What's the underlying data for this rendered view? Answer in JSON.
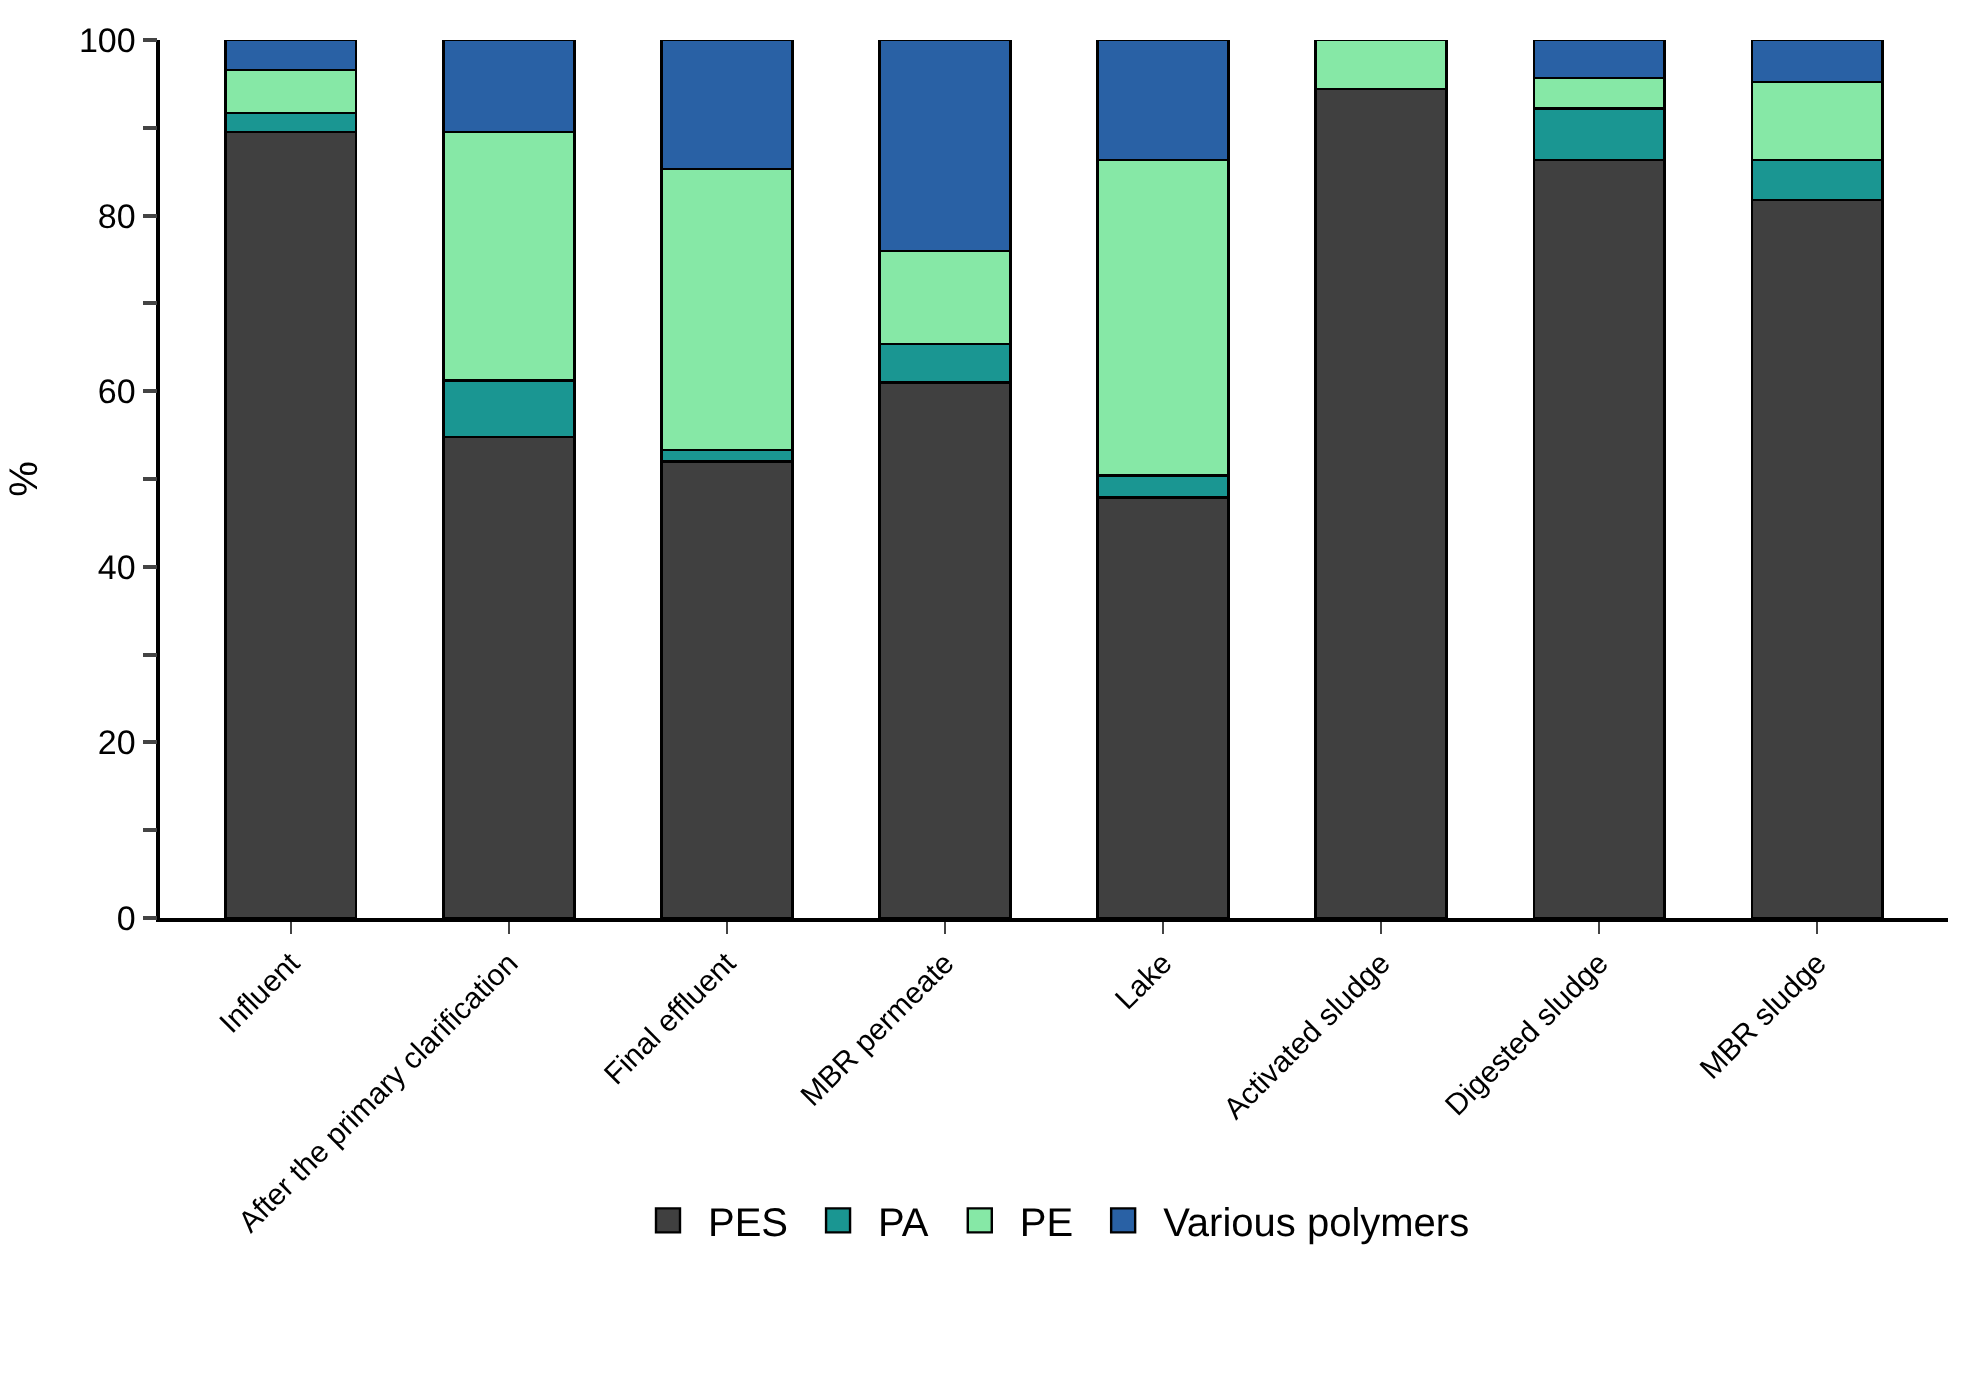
{
  "chart_data": {
    "type": "bar",
    "stacked": true,
    "ylabel": "%",
    "categories": [
      "Influent",
      "After the primary clarification",
      "Final effluent",
      "MBR permeate",
      "Lake",
      "Activated sludge",
      "Digested sludge",
      "MBR sludge"
    ],
    "series": [
      {
        "name": "PES",
        "color": "#404040",
        "values": [
          89.5,
          54.8,
          52.0,
          61.0,
          47.9,
          94.4,
          86.3,
          81.8
        ]
      },
      {
        "name": "PA",
        "color": "#1a9692",
        "values": [
          2.2,
          6.4,
          1.3,
          4.4,
          2.5,
          null,
          5.9,
          4.5
        ]
      },
      {
        "name": "PE",
        "color": "#86e8a6",
        "values": [
          4.9,
          28.3,
          32.0,
          10.6,
          35.9,
          5.6,
          3.5,
          8.9
        ]
      },
      {
        "name": "Various polymers",
        "color": "#2961a5",
        "values": [
          3.4,
          10.5,
          14.7,
          24.0,
          13.7,
          null,
          4.3,
          4.8
        ]
      }
    ],
    "ylim": [
      0,
      100
    ],
    "yticks": [
      0,
      {
        "value": 10,
        "label": null
      },
      20,
      {
        "value": 30,
        "label": null
      },
      40,
      {
        "value": 50,
        "label": null
      },
      60,
      {
        "value": 70,
        "label": null
      },
      80,
      {
        "value": 90,
        "label": null
      },
      100
    ],
    "legend": "bottom"
  }
}
